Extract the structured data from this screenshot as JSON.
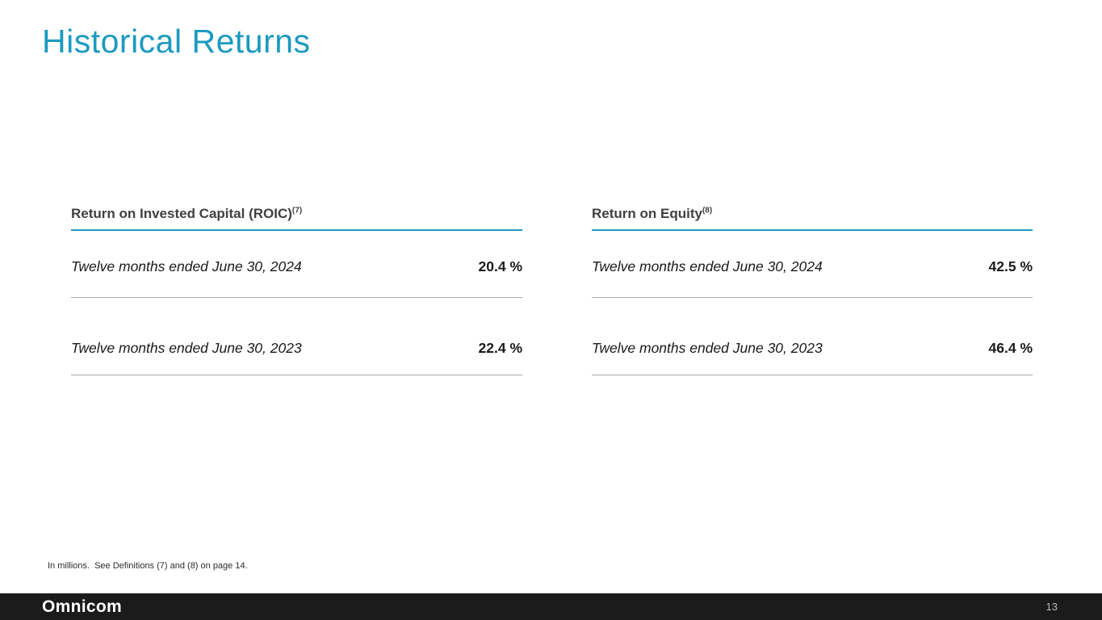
{
  "slide": {
    "title": "Historical Returns",
    "footnote": "In millions.  See Definitions (7) and (8) on page 14.",
    "footer": {
      "logo": "Omnicom",
      "page_number": "13"
    },
    "colors": {
      "accent_teal": "#1c9ac0",
      "footer_bg": "#1b1b1b",
      "header_text": "#404040"
    }
  },
  "tables": [
    {
      "header": "Return on Invested Capital (ROIC)",
      "header_superscript": "(7)",
      "rows": [
        {
          "label": "Twelve months ended June 30, 2024",
          "value": "20.4 %"
        },
        {
          "label": "Twelve months ended June 30, 2023",
          "value": "22.4 %"
        }
      ]
    },
    {
      "header": "Return on Equity",
      "header_superscript": "(8)",
      "rows": [
        {
          "label": "Twelve months ended June 30, 2024",
          "value": "42.5 %"
        },
        {
          "label": "Twelve months ended June 30, 2023",
          "value": "46.4 %"
        }
      ]
    }
  ]
}
